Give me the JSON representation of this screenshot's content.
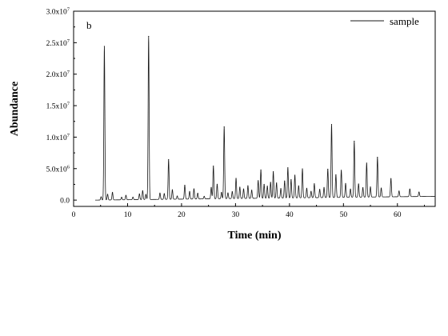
{
  "chart_data": {
    "type": "line",
    "panel_label": "b",
    "xlabel": "Time (min)",
    "ylabel": "Abundance",
    "xlim": [
      0,
      67
    ],
    "ylim": [
      -1000000,
      30000000
    ],
    "x_ticks": [
      0,
      10,
      20,
      30,
      40,
      50,
      60
    ],
    "x_tick_labels": [
      "0",
      "10",
      "20",
      "30",
      "40",
      "50",
      "60"
    ],
    "y_ticks": [
      0,
      5000000,
      10000000,
      15000000,
      20000000,
      25000000,
      30000000
    ],
    "y_tick_labels": [
      {
        "mantissa": "0.0",
        "exponent": ""
      },
      {
        "mantissa": "5.0x10",
        "exponent": "6"
      },
      {
        "mantissa": "1.0x10",
        "exponent": "7"
      },
      {
        "mantissa": "1.5x10",
        "exponent": "7"
      },
      {
        "mantissa": "2.0x10",
        "exponent": "7"
      },
      {
        "mantissa": "2.5x10",
        "exponent": "7"
      },
      {
        "mantissa": "3.0x10",
        "exponent": "7"
      }
    ],
    "legend": {
      "position": "top-right",
      "entries": [
        "sample"
      ]
    },
    "grid": false,
    "series": [
      {
        "name": "sample",
        "color": "#1a1a1a",
        "baseline_start": [
          4.0,
          0
        ],
        "baseline_end": [
          67,
          600000
        ],
        "peaks": [
          [
            5.1,
            500000
          ],
          [
            5.7,
            24400000
          ],
          [
            6.3,
            900000
          ],
          [
            7.2,
            1200000
          ],
          [
            8.9,
            400000
          ],
          [
            9.7,
            700000
          ],
          [
            11.0,
            400000
          ],
          [
            12.2,
            900000
          ],
          [
            12.8,
            1400000
          ],
          [
            13.4,
            800000
          ],
          [
            13.9,
            25900000
          ],
          [
            16.0,
            1000000
          ],
          [
            16.8,
            900000
          ],
          [
            17.6,
            6300000
          ],
          [
            18.3,
            1500000
          ],
          [
            19.2,
            500000
          ],
          [
            20.6,
            2200000
          ],
          [
            21.5,
            1200000
          ],
          [
            22.3,
            1600000
          ],
          [
            23.0,
            900000
          ],
          [
            24.2,
            400000
          ],
          [
            25.5,
            1800000
          ],
          [
            25.9,
            5200000
          ],
          [
            26.6,
            2300000
          ],
          [
            27.4,
            1000000
          ],
          [
            27.9,
            11400000
          ],
          [
            28.6,
            900000
          ],
          [
            29.4,
            1100000
          ],
          [
            30.1,
            3200000
          ],
          [
            30.8,
            1800000
          ],
          [
            31.5,
            1500000
          ],
          [
            32.3,
            2000000
          ],
          [
            33.0,
            1300000
          ],
          [
            34.2,
            2800000
          ],
          [
            34.7,
            4500000
          ],
          [
            35.3,
            2200000
          ],
          [
            35.9,
            1900000
          ],
          [
            36.5,
            2500000
          ],
          [
            37.0,
            4200000
          ],
          [
            37.6,
            2400000
          ],
          [
            38.4,
            1500000
          ],
          [
            39.1,
            2700000
          ],
          [
            39.7,
            4800000
          ],
          [
            40.3,
            2900000
          ],
          [
            41.0,
            3600000
          ],
          [
            41.7,
            1900000
          ],
          [
            42.4,
            4600000
          ],
          [
            43.2,
            1500000
          ],
          [
            44.0,
            1000000
          ],
          [
            44.6,
            2200000
          ],
          [
            45.6,
            1300000
          ],
          [
            46.4,
            1600000
          ],
          [
            47.1,
            4500000
          ],
          [
            47.8,
            11600000
          ],
          [
            48.6,
            3600000
          ],
          [
            49.6,
            4300000
          ],
          [
            50.4,
            2200000
          ],
          [
            51.3,
            1300000
          ],
          [
            52.0,
            8900000
          ],
          [
            52.8,
            2100000
          ],
          [
            53.6,
            1500000
          ],
          [
            54.3,
            5400000
          ],
          [
            55.0,
            1600000
          ],
          [
            56.3,
            6300000
          ],
          [
            57.0,
            1400000
          ],
          [
            58.8,
            2900000
          ],
          [
            60.3,
            900000
          ],
          [
            62.3,
            1200000
          ],
          [
            64.0,
            700000
          ]
        ]
      }
    ]
  }
}
